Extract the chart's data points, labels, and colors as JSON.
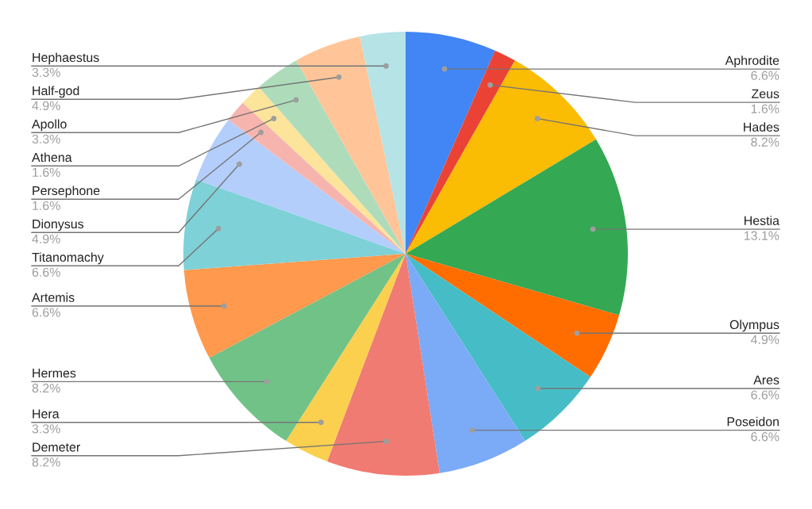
{
  "chart_data": {
    "type": "pie",
    "categories": [
      "Aphrodite",
      "Zeus",
      "Hades",
      "Hestia",
      "Olympus",
      "Ares",
      "Poseidon",
      "Demeter",
      "Hera",
      "Hermes",
      "Artemis",
      "Titanomachy",
      "Dionysus",
      "Persephone",
      "Athena",
      "Apollo",
      "Half-god",
      "Hephaestus"
    ],
    "values": [
      6.6,
      1.6,
      8.2,
      13.1,
      4.9,
      6.6,
      6.6,
      8.2,
      3.3,
      8.2,
      6.6,
      6.6,
      4.9,
      1.6,
      1.6,
      3.3,
      4.9,
      3.3
    ],
    "value_labels": [
      "6.6%",
      "1.6%",
      "8.2%",
      "13.1%",
      "4.9%",
      "6.6%",
      "6.6%",
      "8.2%",
      "3.3%",
      "8.2%",
      "6.6%",
      "6.6%",
      "4.9%",
      "1.6%",
      "1.6%",
      "3.3%",
      "4.9%",
      "3.3%"
    ],
    "colors": [
      "#4285f4",
      "#ea4335",
      "#fbbc04",
      "#34a853",
      "#ff6d01",
      "#46bdc6",
      "#7baaf7",
      "#f07b72",
      "#fcd04f",
      "#71c287",
      "#ff994d",
      "#7ed1d7",
      "#b3cefb",
      "#f7b4ae",
      "#fde49b",
      "#aedcba",
      "#ffc599",
      "#b5e3e6"
    ],
    "legend": false
  }
}
